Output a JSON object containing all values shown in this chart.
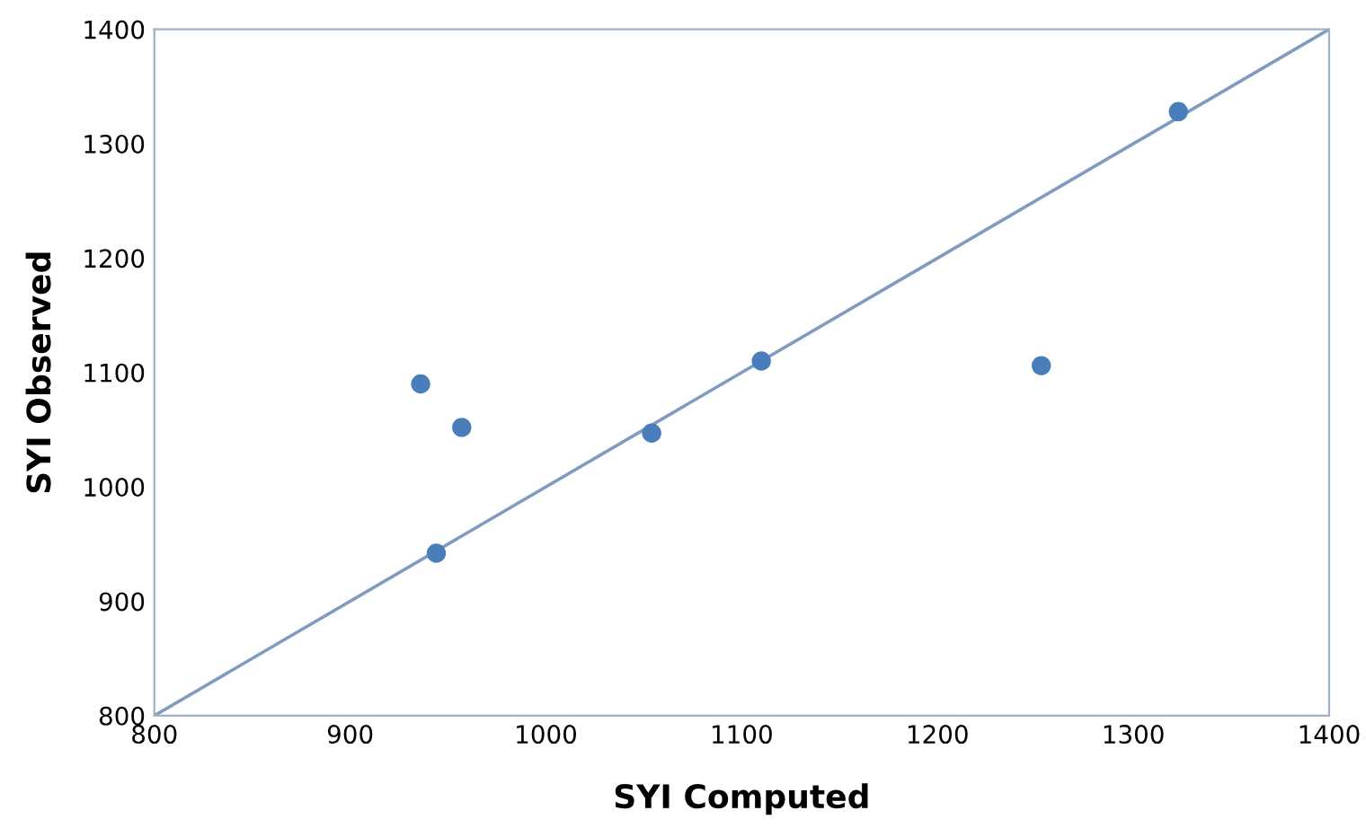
{
  "chart_data": {
    "type": "scatter",
    "xlabel": "SYI Computed",
    "ylabel": "SYI Observed",
    "series": [
      {
        "color": "#4a7ebb",
        "marker": "circle",
        "x": [
          936,
          957,
          944,
          1054,
          1110,
          1253,
          1323
        ],
        "values": [
          1090,
          1052,
          942,
          1047,
          1110,
          1106,
          1328
        ]
      },
      {
        "type": "line",
        "marker": "none",
        "color": "#7f9cc0",
        "x": [
          800,
          1400
        ],
        "values": [
          800,
          1400
        ]
      }
    ],
    "xlim": [
      800,
      1400
    ],
    "ylim": [
      800,
      1400
    ],
    "xticks": [
      800,
      900,
      1000,
      1100,
      1200,
      1300,
      1400
    ],
    "yticks": [
      800,
      900,
      1000,
      1100,
      1200,
      1300,
      1400
    ],
    "grid": false,
    "legend": false
  }
}
